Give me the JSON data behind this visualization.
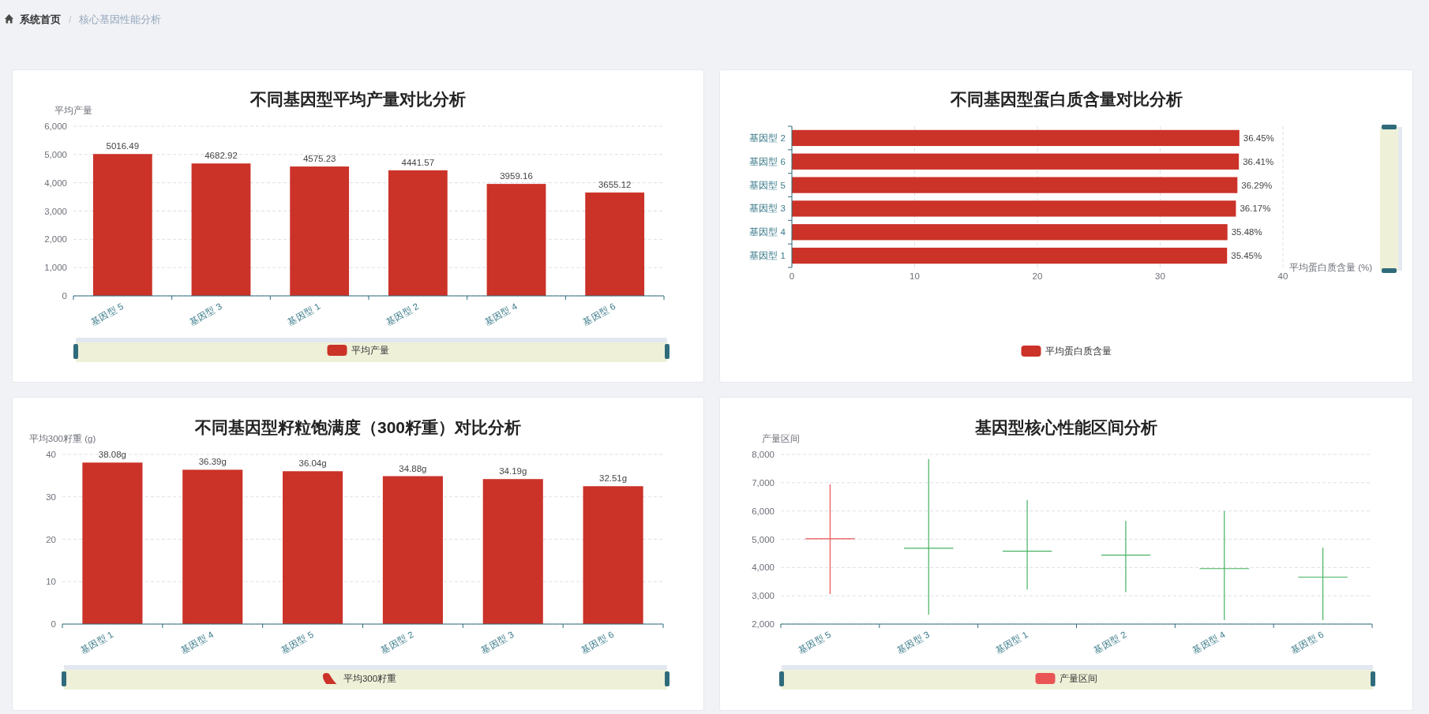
{
  "chart_data": [
    {
      "type": "other",
      "annotations": [
        "系统首页",
        "/",
        "核心基因性能分析"
      ]
    },
    {
      "type": "bar",
      "title": "不同基因型平均产量对比分析",
      "ylabel": "平均产量",
      "categories": [
        "基因型 5",
        "基因型 3",
        "基因型 1",
        "基因型 2",
        "基因型 4",
        "基因型 6"
      ],
      "series": [
        {
          "name": "平均产量",
          "color": "#cb3228",
          "values": [
            5016.49,
            4682.92,
            4575.23,
            4441.57,
            3959.16,
            3655.12
          ]
        }
      ],
      "ylim": [
        0,
        6000
      ],
      "yticks": [
        0,
        {
          "value": 1000,
          "label": "1,000"
        },
        {
          "value": 2000,
          "label": "2,000"
        },
        {
          "value": 3000,
          "label": "3,000"
        },
        {
          "value": 4000,
          "label": "4,000"
        },
        {
          "value": 5000,
          "label": "5,000"
        },
        {
          "value": 6000,
          "label": "6,000"
        }
      ],
      "grid": "y",
      "legend": "bottom",
      "data_labels": true
    },
    {
      "type": "bar",
      "orientation": "horizontal",
      "title": "不同基因型蛋白质含量对比分析",
      "xlabel": "平均蛋白质含量 (%)",
      "categories": [
        "基因型 2",
        "基因型 6",
        "基因型 5",
        "基因型 3",
        "基因型 4",
        "基因型 1"
      ],
      "series": [
        {
          "name": "平均蛋白质含量",
          "color": "#cb3228",
          "values": [
            36.45,
            36.41,
            36.29,
            36.17,
            35.48,
            35.45
          ],
          "value_labels": [
            "36.45%",
            "36.41%",
            "36.29%",
            "36.17%",
            "35.48%",
            "35.45%"
          ]
        }
      ],
      "xlim": [
        0,
        40
      ],
      "xticks": [
        0,
        10,
        20,
        30,
        40
      ],
      "grid": "x",
      "legend": "bottom"
    },
    {
      "type": "bar",
      "title": "不同基因型籽粒饱满度（300籽重）对比分析",
      "ylabel": "平均300籽重 (g)",
      "categories": [
        "基因型 1",
        "基因型 4",
        "基因型 5",
        "基因型 2",
        "基因型 3",
        "基因型 6"
      ],
      "series": [
        {
          "name": "平均300籽重",
          "color": "#cb3228",
          "values": [
            38.08,
            36.39,
            36.04,
            34.88,
            34.19,
            32.51
          ],
          "value_labels": [
            "38.08g",
            "36.39g",
            "36.04g",
            "34.88g",
            "34.19g",
            "32.51g"
          ]
        }
      ],
      "ylim": [
        0,
        40
      ],
      "yticks": [
        0,
        10,
        20,
        30,
        40
      ],
      "grid": "y",
      "legend": "bottom"
    },
    {
      "type": "candlestick",
      "title": "基因型核心性能区间分析",
      "ylabel": "产量区间",
      "categories": [
        "基因型 5",
        "基因型 3",
        "基因型 1",
        "基因型 2",
        "基因型 4",
        "基因型 6"
      ],
      "series": [
        {
          "name": "产量区间",
          "color": "#eb5454",
          "colors": [
            "#eb5454",
            "#47b262",
            "#47b262",
            "#47b262",
            "#47b262",
            "#47b262"
          ],
          "ohlc": [
            [
              5020,
              6940,
              3060,
              5020
            ],
            [
              4680,
              7840,
              2330,
              4680
            ],
            [
              4580,
              6380,
              3220,
              4580
            ],
            [
              4440,
              5650,
              3130,
              4440
            ],
            [
              3960,
              6000,
              2140,
              3960
            ],
            [
              3660,
              4700,
              2140,
              3660
            ]
          ]
        }
      ],
      "ylim": [
        2000,
        8000
      ],
      "yticks": [
        {
          "value": 2000,
          "label": "2,000"
        },
        {
          "value": 3000,
          "label": "3,000"
        },
        {
          "value": 4000,
          "label": "4,000"
        },
        {
          "value": 5000,
          "label": "5,000"
        },
        {
          "value": 6000,
          "label": "6,000"
        },
        {
          "value": 7000,
          "label": "7,000"
        },
        {
          "value": 8000,
          "label": "8,000"
        }
      ],
      "grid": "y",
      "legend": "bottom"
    }
  ]
}
